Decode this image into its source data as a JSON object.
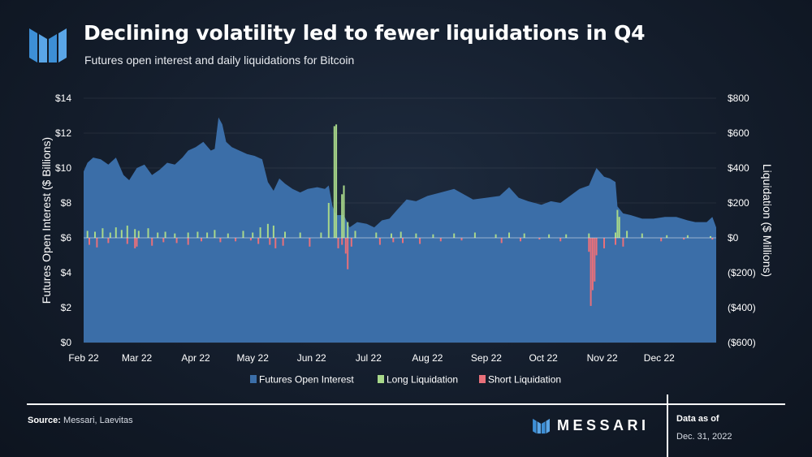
{
  "header": {
    "title": "Declining volatility led to fewer liquidations in Q4",
    "subtitle": "Futures open interest and daily liquidations for Bitcoin"
  },
  "footer": {
    "source_label": "Source:",
    "source_text": "Messari, Laevitas",
    "brand": "MESSARI",
    "as_of_label": "Data as of",
    "as_of_date": "Dec. 31, 2022"
  },
  "colors": {
    "open_interest": "#3b6ea8",
    "long_liquidation": "#a8d88a",
    "short_liquidation": "#e8707a",
    "text": "#ffffff",
    "brand_accent": "#5aa5e6"
  },
  "chart_data": {
    "type": "area",
    "y_left": {
      "label": "Futures Open Interest ($ Billions)",
      "min": 0,
      "max": 14,
      "ticks": [
        0,
        2,
        4,
        6,
        8,
        10,
        12,
        14
      ],
      "tick_labels": [
        "$0",
        "$2",
        "$4",
        "$6",
        "$8",
        "$10",
        "$12",
        "$14"
      ]
    },
    "y_right": {
      "label": "Liquidation ($ Millions)",
      "min": -600,
      "max": 800,
      "ticks": [
        -600,
        -400,
        -200,
        0,
        200,
        400,
        600,
        800
      ],
      "tick_labels": [
        "($600)",
        "($400)",
        "($200)",
        "$0",
        "$200",
        "$400",
        "$600",
        "$800"
      ]
    },
    "x_axis": {
      "start": "2022-02-01",
      "end": "2022-12-31",
      "ticks": [
        {
          "date": "2022-02-01",
          "label": "Feb 22"
        },
        {
          "date": "2022-03-01",
          "label": "Mar 22"
        },
        {
          "date": "2022-04-01",
          "label": "Apr 22"
        },
        {
          "date": "2022-05-01",
          "label": "May 22"
        },
        {
          "date": "2022-06-01",
          "label": "Jun 22"
        },
        {
          "date": "2022-07-01",
          "label": "Jul 22"
        },
        {
          "date": "2022-08-01",
          "label": "Aug 22"
        },
        {
          "date": "2022-09-01",
          "label": "Sep 22"
        },
        {
          "date": "2022-10-01",
          "label": "Oct 22"
        },
        {
          "date": "2022-11-01",
          "label": "Nov 22"
        },
        {
          "date": "2022-12-01",
          "label": "Dec 22"
        }
      ]
    },
    "legend": {
      "placement": "bottom",
      "items": [
        {
          "label": "Futures Open Interest",
          "color": "#3b6ea8"
        },
        {
          "label": "Long Liquidation",
          "color": "#a8d88a"
        },
        {
          "label": "Short Liquidation",
          "color": "#e8707a"
        }
      ]
    },
    "series": [
      {
        "name": "Futures Open Interest",
        "axis": "left",
        "kind": "area",
        "points": [
          [
            "2022-02-01",
            9.8
          ],
          [
            "2022-02-03",
            10.3
          ],
          [
            "2022-02-06",
            10.6
          ],
          [
            "2022-02-10",
            10.5
          ],
          [
            "2022-02-14",
            10.2
          ],
          [
            "2022-02-18",
            10.6
          ],
          [
            "2022-02-22",
            9.6
          ],
          [
            "2022-02-25",
            9.3
          ],
          [
            "2022-03-01",
            10.0
          ],
          [
            "2022-03-05",
            10.2
          ],
          [
            "2022-03-09",
            9.6
          ],
          [
            "2022-03-13",
            9.9
          ],
          [
            "2022-03-17",
            10.3
          ],
          [
            "2022-03-21",
            10.2
          ],
          [
            "2022-03-25",
            10.6
          ],
          [
            "2022-03-28",
            11.0
          ],
          [
            "2022-04-01",
            11.2
          ],
          [
            "2022-04-05",
            11.5
          ],
          [
            "2022-04-09",
            11.0
          ],
          [
            "2022-04-11",
            11.1
          ],
          [
            "2022-04-13",
            12.9
          ],
          [
            "2022-04-15",
            12.5
          ],
          [
            "2022-04-17",
            11.5
          ],
          [
            "2022-04-20",
            11.2
          ],
          [
            "2022-04-24",
            11.0
          ],
          [
            "2022-04-28",
            10.8
          ],
          [
            "2022-05-02",
            10.7
          ],
          [
            "2022-05-06",
            10.5
          ],
          [
            "2022-05-09",
            9.2
          ],
          [
            "2022-05-12",
            8.7
          ],
          [
            "2022-05-15",
            9.4
          ],
          [
            "2022-05-18",
            9.1
          ],
          [
            "2022-05-22",
            8.8
          ],
          [
            "2022-05-26",
            8.6
          ],
          [
            "2022-05-30",
            8.8
          ],
          [
            "2022-06-04",
            8.9
          ],
          [
            "2022-06-08",
            8.8
          ],
          [
            "2022-06-10",
            9.0
          ],
          [
            "2022-06-12",
            7.8
          ],
          [
            "2022-06-14",
            7.3
          ],
          [
            "2022-06-18",
            7.3
          ],
          [
            "2022-06-21",
            6.6
          ],
          [
            "2022-06-25",
            6.9
          ],
          [
            "2022-06-30",
            6.8
          ],
          [
            "2022-07-04",
            6.6
          ],
          [
            "2022-07-08",
            7.0
          ],
          [
            "2022-07-12",
            7.1
          ],
          [
            "2022-07-16",
            7.6
          ],
          [
            "2022-07-21",
            8.2
          ],
          [
            "2022-07-26",
            8.1
          ],
          [
            "2022-08-01",
            8.4
          ],
          [
            "2022-08-08",
            8.6
          ],
          [
            "2022-08-15",
            8.8
          ],
          [
            "2022-08-20",
            8.5
          ],
          [
            "2022-08-25",
            8.2
          ],
          [
            "2022-09-01",
            8.3
          ],
          [
            "2022-09-08",
            8.4
          ],
          [
            "2022-09-13",
            8.9
          ],
          [
            "2022-09-18",
            8.3
          ],
          [
            "2022-09-23",
            8.1
          ],
          [
            "2022-09-30",
            7.9
          ],
          [
            "2022-10-05",
            8.1
          ],
          [
            "2022-10-10",
            8.0
          ],
          [
            "2022-10-15",
            8.4
          ],
          [
            "2022-10-20",
            8.8
          ],
          [
            "2022-10-25",
            9.0
          ],
          [
            "2022-10-29",
            10.0
          ],
          [
            "2022-11-02",
            9.5
          ],
          [
            "2022-11-05",
            9.4
          ],
          [
            "2022-11-08",
            9.2
          ],
          [
            "2022-11-09",
            7.8
          ],
          [
            "2022-11-12",
            7.4
          ],
          [
            "2022-11-16",
            7.3
          ],
          [
            "2022-11-22",
            7.1
          ],
          [
            "2022-11-28",
            7.1
          ],
          [
            "2022-12-04",
            7.2
          ],
          [
            "2022-12-10",
            7.2
          ],
          [
            "2022-12-16",
            7.0
          ],
          [
            "2022-12-20",
            6.9
          ],
          [
            "2022-12-26",
            6.9
          ],
          [
            "2022-12-29",
            7.2
          ],
          [
            "2022-12-31",
            6.6
          ]
        ]
      },
      {
        "name": "Long Liquidation",
        "axis": "right",
        "kind": "bars",
        "points": [
          [
            "2022-02-03",
            40
          ],
          [
            "2022-02-07",
            35
          ],
          [
            "2022-02-11",
            55
          ],
          [
            "2022-02-15",
            30
          ],
          [
            "2022-02-18",
            60
          ],
          [
            "2022-02-21",
            45
          ],
          [
            "2022-02-24",
            70
          ],
          [
            "2022-02-28",
            50
          ],
          [
            "2022-03-02",
            40
          ],
          [
            "2022-03-07",
            55
          ],
          [
            "2022-03-12",
            30
          ],
          [
            "2022-03-16",
            35
          ],
          [
            "2022-03-21",
            25
          ],
          [
            "2022-03-28",
            30
          ],
          [
            "2022-04-02",
            35
          ],
          [
            "2022-04-07",
            30
          ],
          [
            "2022-04-11",
            45
          ],
          [
            "2022-04-18",
            25
          ],
          [
            "2022-04-26",
            40
          ],
          [
            "2022-05-01",
            30
          ],
          [
            "2022-05-05",
            60
          ],
          [
            "2022-05-09",
            80
          ],
          [
            "2022-05-12",
            70
          ],
          [
            "2022-05-18",
            35
          ],
          [
            "2022-05-26",
            30
          ],
          [
            "2022-06-06",
            30
          ],
          [
            "2022-06-10",
            200
          ],
          [
            "2022-06-13",
            640
          ],
          [
            "2022-06-14",
            650
          ],
          [
            "2022-06-17",
            250
          ],
          [
            "2022-06-18",
            300
          ],
          [
            "2022-06-20",
            90
          ],
          [
            "2022-06-24",
            40
          ],
          [
            "2022-07-05",
            30
          ],
          [
            "2022-07-13",
            25
          ],
          [
            "2022-07-18",
            35
          ],
          [
            "2022-07-26",
            25
          ],
          [
            "2022-08-04",
            20
          ],
          [
            "2022-08-15",
            25
          ],
          [
            "2022-08-26",
            30
          ],
          [
            "2022-09-06",
            20
          ],
          [
            "2022-09-13",
            30
          ],
          [
            "2022-09-21",
            25
          ],
          [
            "2022-10-04",
            20
          ],
          [
            "2022-10-13",
            20
          ],
          [
            "2022-10-25",
            25
          ],
          [
            "2022-11-08",
            30
          ],
          [
            "2022-11-09",
            160
          ],
          [
            "2022-11-10",
            120
          ],
          [
            "2022-11-14",
            40
          ],
          [
            "2022-11-22",
            25
          ],
          [
            "2022-12-05",
            15
          ],
          [
            "2022-12-16",
            15
          ],
          [
            "2022-12-28",
            10
          ]
        ]
      },
      {
        "name": "Short Liquidation",
        "axis": "right",
        "kind": "bars",
        "points": [
          [
            "2022-02-04",
            -40
          ],
          [
            "2022-02-08",
            -55
          ],
          [
            "2022-02-14",
            -30
          ],
          [
            "2022-02-24",
            -35
          ],
          [
            "2022-02-28",
            -60
          ],
          [
            "2022-03-01",
            -50
          ],
          [
            "2022-03-09",
            -45
          ],
          [
            "2022-03-15",
            -25
          ],
          [
            "2022-03-22",
            -30
          ],
          [
            "2022-03-28",
            -40
          ],
          [
            "2022-04-04",
            -20
          ],
          [
            "2022-04-14",
            -25
          ],
          [
            "2022-04-22",
            -20
          ],
          [
            "2022-04-30",
            -15
          ],
          [
            "2022-05-04",
            -35
          ],
          [
            "2022-05-10",
            -40
          ],
          [
            "2022-05-13",
            -60
          ],
          [
            "2022-05-17",
            -45
          ],
          [
            "2022-05-31",
            -50
          ],
          [
            "2022-06-15",
            -60
          ],
          [
            "2022-06-17",
            -40
          ],
          [
            "2022-06-19",
            -90
          ],
          [
            "2022-06-20",
            -180
          ],
          [
            "2022-06-22",
            -50
          ],
          [
            "2022-07-07",
            -40
          ],
          [
            "2022-07-14",
            -25
          ],
          [
            "2022-07-19",
            -30
          ],
          [
            "2022-07-28",
            -35
          ],
          [
            "2022-08-08",
            -20
          ],
          [
            "2022-08-19",
            -15
          ],
          [
            "2022-09-09",
            -30
          ],
          [
            "2022-09-19",
            -20
          ],
          [
            "2022-09-29",
            -10
          ],
          [
            "2022-10-10",
            -20
          ],
          [
            "2022-10-25",
            -80
          ],
          [
            "2022-10-26",
            -390
          ],
          [
            "2022-10-27",
            -300
          ],
          [
            "2022-10-28",
            -250
          ],
          [
            "2022-10-29",
            -100
          ],
          [
            "2022-11-02",
            -60
          ],
          [
            "2022-11-08",
            -40
          ],
          [
            "2022-11-12",
            -50
          ],
          [
            "2022-12-02",
            -20
          ],
          [
            "2022-12-14",
            -10
          ],
          [
            "2022-12-29",
            -10
          ]
        ]
      }
    ]
  }
}
